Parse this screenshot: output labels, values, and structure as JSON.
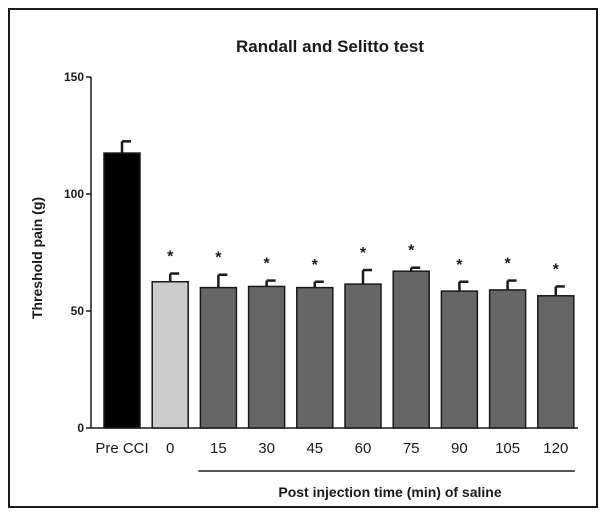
{
  "chart_data": {
    "type": "bar",
    "title": "Randall and Selitto test",
    "ylabel": "Threshold pain (g)",
    "xlabel": "Post injection time (min) of saline",
    "ylim": [
      0,
      150
    ],
    "yticks": [
      0,
      50,
      100,
      150
    ],
    "grid": false,
    "categories": [
      "Pre CCI",
      "0",
      "15",
      "30",
      "45",
      "60",
      "75",
      "90",
      "105",
      "120"
    ],
    "values": [
      117.5,
      62.5,
      60,
      60.5,
      60,
      61.5,
      67,
      58.5,
      59,
      56.5
    ],
    "errors": [
      5,
      3.5,
      5.5,
      2.5,
      2.5,
      6,
      1.5,
      4,
      4,
      4
    ],
    "significance": [
      "",
      "*",
      "*",
      "*",
      "*",
      "*",
      "*",
      "*",
      "*",
      "*"
    ],
    "colors": [
      "#000000",
      "#cccccc",
      "#666666",
      "#666666",
      "#666666",
      "#666666",
      "#666666",
      "#666666",
      "#666666",
      "#666666"
    ],
    "bracket_range": [
      "15",
      "120"
    ]
  }
}
